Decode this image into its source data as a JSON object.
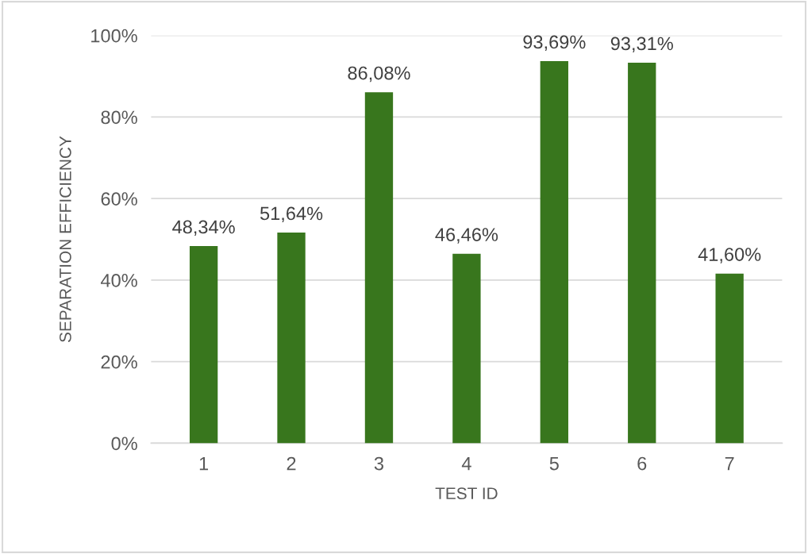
{
  "chart_data": {
    "type": "bar",
    "xlabel": "TEST ID",
    "ylabel": "SEPARATION EFFICIENCY",
    "categories": [
      "1",
      "2",
      "3",
      "4",
      "5",
      "6",
      "7"
    ],
    "values": [
      48.34,
      51.64,
      86.08,
      46.46,
      93.69,
      93.31,
      41.6
    ],
    "value_labels": [
      "48,34%",
      "51,64%",
      "86,08%",
      "46,46%",
      "93,69%",
      "93,31%",
      "41,60%"
    ],
    "color": "#38761d",
    "ylim": [
      0,
      100
    ],
    "yticks": [
      {
        "value": 0,
        "label": "0%"
      },
      {
        "value": 20,
        "label": "20%"
      },
      {
        "value": 40,
        "label": "40%"
      },
      {
        "value": 60,
        "label": "60%"
      },
      {
        "value": 80,
        "label": "80%"
      },
      {
        "value": 100,
        "label": "100%"
      }
    ],
    "grid": "y",
    "legend": false
  }
}
